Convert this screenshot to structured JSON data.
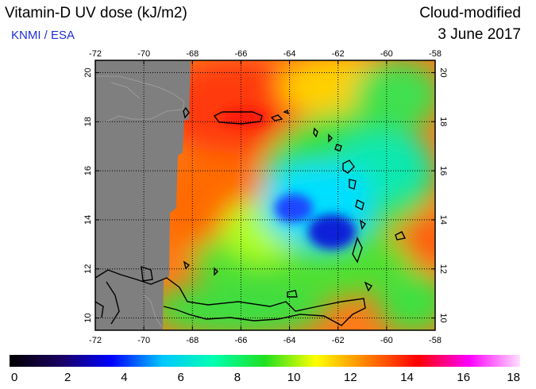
{
  "header": {
    "title": "Vitamin-D UV dose (kJ/m2)",
    "subtitle": "KNMI / ESA",
    "mode": "Cloud-modified",
    "date": "3 June 2017"
  },
  "map": {
    "lon_range": [
      -72,
      -58
    ],
    "lat_range": [
      9.5,
      20.5
    ],
    "lon_ticks": [
      -72,
      -70,
      -68,
      -66,
      -64,
      -62,
      -60,
      -58
    ],
    "lat_ticks": [
      10,
      12,
      14,
      16,
      18,
      20
    ],
    "gridlines": true,
    "no_data_color": "#7f7f7f",
    "coastline_color": "#000000"
  },
  "colorbar": {
    "min": 0,
    "max": 18,
    "ticks": [
      0,
      2,
      4,
      6,
      8,
      10,
      12,
      14,
      16,
      18
    ],
    "colors": [
      "#000000",
      "#1a0060",
      "#0000ff",
      "#00c8ff",
      "#00ffb0",
      "#20e020",
      "#ffff00",
      "#ff8000",
      "#ff0000",
      "#ff00ff",
      "#ffe0ff"
    ]
  }
}
